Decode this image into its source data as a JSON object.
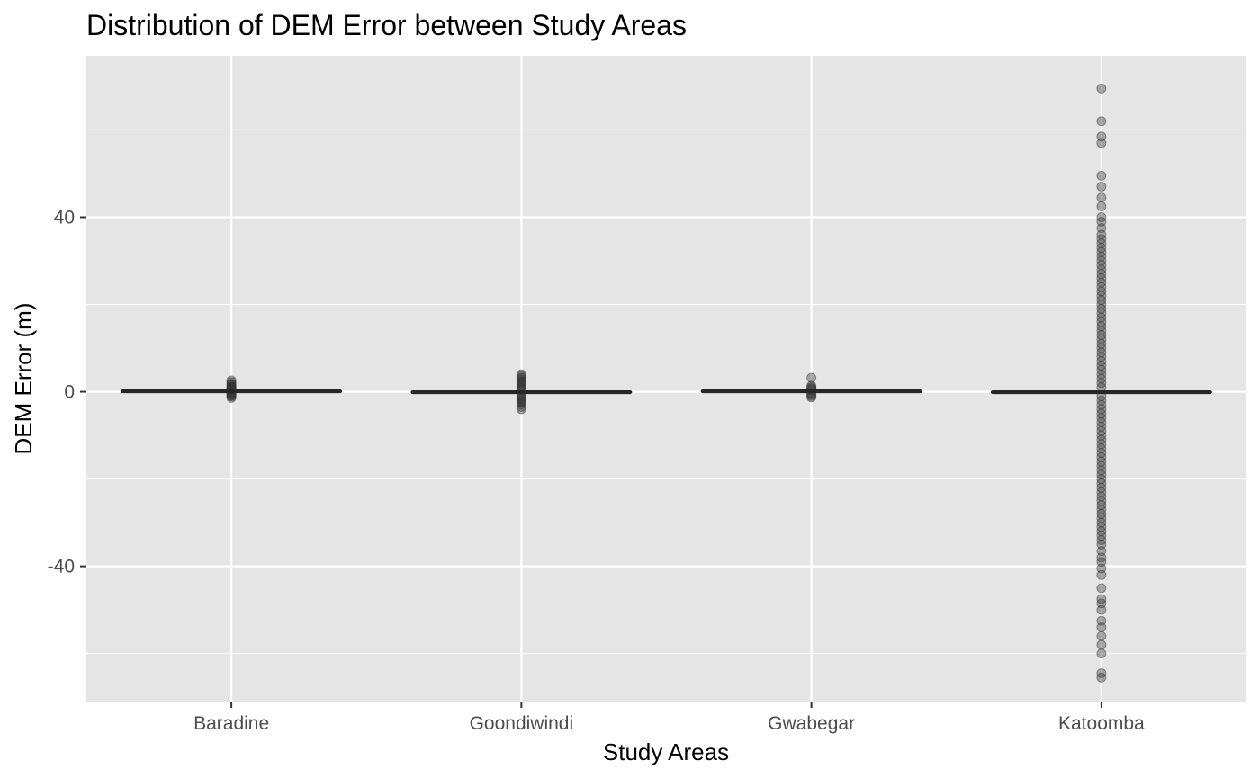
{
  "chart_data": {
    "type": "boxplot",
    "title": "Distribution of DEM Error between Study Areas",
    "xlabel": "Study Areas",
    "ylabel": "DEM Error (m)",
    "categories": [
      "Baradine",
      "Goondiwindi",
      "Gwabegar",
      "Katoomba"
    ],
    "ylim": [
      -71,
      77
    ],
    "yticks": [
      -40,
      0,
      40
    ],
    "ytick_labels": [
      "-40",
      "0",
      "40"
    ],
    "grid": true,
    "boxes": [
      {
        "category": "Baradine",
        "median": 0.1,
        "outliers": [
          2.6,
          2.2,
          1.8,
          1.5,
          1.2,
          1.0,
          0.8,
          0.6,
          0.4,
          -0.3,
          -0.5,
          -0.7,
          -0.9,
          -1.1,
          -1.4
        ]
      },
      {
        "category": "Goondiwindi",
        "median": -0.1,
        "outliers": [
          4.0,
          3.6,
          3.2,
          2.8,
          2.4,
          2.0,
          1.6,
          1.2,
          0.8,
          0.4,
          -0.5,
          -0.9,
          -1.3,
          -1.7,
          -2.1,
          -2.5,
          -2.9,
          -3.5,
          -4.0
        ]
      },
      {
        "category": "Gwabegar",
        "median": 0.1,
        "outliers": [
          3.2,
          1.4,
          1.1,
          0.8,
          0.5,
          -0.4,
          -0.7,
          -1.0,
          -1.3
        ]
      },
      {
        "category": "Katoomba",
        "median": -0.1,
        "outliers": [
          69.5,
          62,
          58.5,
          57,
          49.5,
          47,
          44.5,
          42.5,
          40,
          39,
          37.5,
          36,
          35,
          34,
          33,
          32,
          31,
          30,
          29,
          28,
          27,
          26,
          25,
          24,
          23,
          22,
          21,
          20,
          19,
          18,
          17,
          16,
          15,
          14,
          13,
          12,
          11,
          10,
          9,
          8,
          7,
          6,
          5,
          4,
          3,
          2,
          1,
          -1,
          -2,
          -3,
          -4,
          -5,
          -6,
          -7,
          -8,
          -9,
          -10,
          -11,
          -12,
          -13,
          -14,
          -15,
          -16,
          -17,
          -18,
          -19,
          -20,
          -21,
          -22,
          -23,
          -24,
          -25,
          -26,
          -27,
          -28,
          -29,
          -30,
          -31,
          -32,
          -33,
          -34,
          -35,
          -36.5,
          -38,
          -39,
          -40.5,
          -42,
          -45,
          -47.5,
          -48.5,
          -50,
          -52.5,
          -54,
          -56,
          -58,
          -60,
          -64.5,
          -65.5
        ]
      }
    ],
    "colors": {
      "panel_background": "#e5e5e5",
      "grid_major": "#ffffff",
      "grid_minor": "#f2f2f2",
      "box_line": "#262626",
      "outlier": "#333333",
      "tick": "#333333"
    }
  }
}
